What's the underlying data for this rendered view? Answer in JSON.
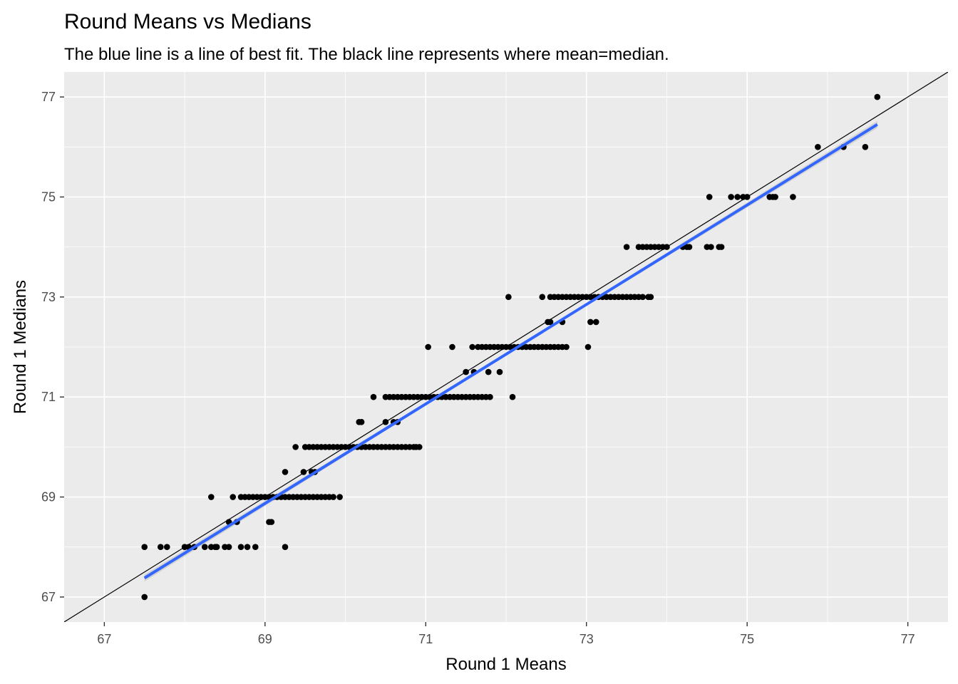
{
  "chart_data": {
    "type": "scatter",
    "title": "Round Means vs Medians",
    "subtitle": "The blue line is a line of best fit. The black line represents where mean=median.",
    "xlabel": "Round 1 Means",
    "ylabel": "Round 1 Medians",
    "xlim": [
      66.5,
      77.5
    ],
    "ylim": [
      66.5,
      77.5
    ],
    "x_ticks": [
      67,
      69,
      71,
      73,
      75,
      77
    ],
    "y_ticks": [
      67,
      69,
      71,
      73,
      75,
      77
    ],
    "grid": true,
    "colors": {
      "panel": "#ebebeb",
      "grid_major": "#ffffff",
      "points": "#000000",
      "fit_line": "#3366ff",
      "identity_line": "#000000",
      "ribbon": "#c8c8c8"
    },
    "fit_line": {
      "x": [
        67.5,
        76.62
      ],
      "y": [
        67.38,
        76.45
      ]
    },
    "identity_line": {
      "slope": 1,
      "intercept": 0
    },
    "points": [
      [
        67.5,
        67
      ],
      [
        67.5,
        68
      ],
      [
        67.7,
        68
      ],
      [
        67.78,
        68
      ],
      [
        68.0,
        68
      ],
      [
        68.05,
        68
      ],
      [
        68.12,
        68
      ],
      [
        68.25,
        68
      ],
      [
        68.33,
        68
      ],
      [
        68.38,
        68
      ],
      [
        68.4,
        68
      ],
      [
        68.5,
        68
      ],
      [
        68.55,
        68
      ],
      [
        68.7,
        68
      ],
      [
        68.78,
        68
      ],
      [
        68.88,
        68
      ],
      [
        69.25,
        68
      ],
      [
        68.55,
        68.5
      ],
      [
        68.65,
        68.5
      ],
      [
        69.05,
        68.5
      ],
      [
        69.08,
        68.5
      ],
      [
        68.33,
        69
      ],
      [
        68.6,
        69
      ],
      [
        68.7,
        69
      ],
      [
        68.75,
        69
      ],
      [
        68.8,
        69
      ],
      [
        68.85,
        69
      ],
      [
        68.9,
        69
      ],
      [
        68.95,
        69
      ],
      [
        69.0,
        69
      ],
      [
        69.05,
        69
      ],
      [
        69.1,
        69
      ],
      [
        69.15,
        69
      ],
      [
        69.2,
        69
      ],
      [
        69.25,
        69
      ],
      [
        69.3,
        69
      ],
      [
        69.35,
        69
      ],
      [
        69.4,
        69
      ],
      [
        69.45,
        69
      ],
      [
        69.5,
        69
      ],
      [
        69.55,
        69
      ],
      [
        69.6,
        69
      ],
      [
        69.65,
        69
      ],
      [
        69.7,
        69
      ],
      [
        69.75,
        69
      ],
      [
        69.8,
        69
      ],
      [
        69.85,
        69
      ],
      [
        69.93,
        69
      ],
      [
        69.25,
        69.5
      ],
      [
        69.48,
        69.5
      ],
      [
        69.58,
        69.5
      ],
      [
        69.62,
        69.5
      ],
      [
        69.38,
        70
      ],
      [
        69.5,
        70
      ],
      [
        69.55,
        70
      ],
      [
        69.6,
        70
      ],
      [
        69.65,
        70
      ],
      [
        69.7,
        70
      ],
      [
        69.75,
        70
      ],
      [
        69.8,
        70
      ],
      [
        69.85,
        70
      ],
      [
        69.9,
        70
      ],
      [
        69.95,
        70
      ],
      [
        70.0,
        70
      ],
      [
        70.05,
        70
      ],
      [
        70.1,
        70
      ],
      [
        70.15,
        70
      ],
      [
        70.2,
        70
      ],
      [
        70.25,
        70
      ],
      [
        70.3,
        70
      ],
      [
        70.35,
        70
      ],
      [
        70.4,
        70
      ],
      [
        70.45,
        70
      ],
      [
        70.5,
        70
      ],
      [
        70.55,
        70
      ],
      [
        70.6,
        70
      ],
      [
        70.65,
        70
      ],
      [
        70.7,
        70
      ],
      [
        70.75,
        70
      ],
      [
        70.8,
        70
      ],
      [
        70.85,
        70
      ],
      [
        70.88,
        70
      ],
      [
        70.92,
        70
      ],
      [
        70.17,
        70.5
      ],
      [
        70.2,
        70.5
      ],
      [
        70.5,
        70.5
      ],
      [
        70.6,
        70.5
      ],
      [
        70.65,
        70.5
      ],
      [
        70.35,
        71
      ],
      [
        70.5,
        71
      ],
      [
        70.55,
        71
      ],
      [
        70.6,
        71
      ],
      [
        70.65,
        71
      ],
      [
        70.7,
        71
      ],
      [
        70.75,
        71
      ],
      [
        70.8,
        71
      ],
      [
        70.85,
        71
      ],
      [
        70.9,
        71
      ],
      [
        70.95,
        71
      ],
      [
        71.0,
        71
      ],
      [
        71.05,
        71
      ],
      [
        71.1,
        71
      ],
      [
        71.15,
        71
      ],
      [
        71.2,
        71
      ],
      [
        71.25,
        71
      ],
      [
        71.3,
        71
      ],
      [
        71.35,
        71
      ],
      [
        71.4,
        71
      ],
      [
        71.45,
        71
      ],
      [
        71.5,
        71
      ],
      [
        71.55,
        71
      ],
      [
        71.6,
        71
      ],
      [
        71.65,
        71
      ],
      [
        71.7,
        71
      ],
      [
        71.75,
        71
      ],
      [
        71.8,
        71
      ],
      [
        72.08,
        71
      ],
      [
        71.5,
        71.5
      ],
      [
        71.6,
        71.5
      ],
      [
        71.78,
        71.5
      ],
      [
        71.92,
        71.5
      ],
      [
        71.03,
        72
      ],
      [
        71.33,
        72
      ],
      [
        71.58,
        72
      ],
      [
        71.65,
        72
      ],
      [
        71.7,
        72
      ],
      [
        71.75,
        72
      ],
      [
        71.8,
        72
      ],
      [
        71.85,
        72
      ],
      [
        71.9,
        72
      ],
      [
        71.95,
        72
      ],
      [
        72.0,
        72
      ],
      [
        72.05,
        72
      ],
      [
        72.1,
        72
      ],
      [
        72.15,
        72
      ],
      [
        72.2,
        72
      ],
      [
        72.25,
        72
      ],
      [
        72.3,
        72
      ],
      [
        72.35,
        72
      ],
      [
        72.4,
        72
      ],
      [
        72.45,
        72
      ],
      [
        72.5,
        72
      ],
      [
        72.55,
        72
      ],
      [
        72.6,
        72
      ],
      [
        72.65,
        72
      ],
      [
        72.7,
        72
      ],
      [
        72.75,
        72
      ],
      [
        73.02,
        72
      ],
      [
        72.52,
        72.5
      ],
      [
        72.55,
        72.5
      ],
      [
        72.7,
        72.5
      ],
      [
        73.05,
        72.5
      ],
      [
        73.12,
        72.5
      ],
      [
        72.03,
        73
      ],
      [
        72.45,
        73
      ],
      [
        72.55,
        73
      ],
      [
        72.6,
        73
      ],
      [
        72.65,
        73
      ],
      [
        72.7,
        73
      ],
      [
        72.75,
        73
      ],
      [
        72.8,
        73
      ],
      [
        72.85,
        73
      ],
      [
        72.9,
        73
      ],
      [
        72.95,
        73
      ],
      [
        73.0,
        73
      ],
      [
        73.05,
        73
      ],
      [
        73.1,
        73
      ],
      [
        73.15,
        73
      ],
      [
        73.2,
        73
      ],
      [
        73.25,
        73
      ],
      [
        73.3,
        73
      ],
      [
        73.35,
        73
      ],
      [
        73.4,
        73
      ],
      [
        73.45,
        73
      ],
      [
        73.5,
        73
      ],
      [
        73.55,
        73
      ],
      [
        73.6,
        73
      ],
      [
        73.65,
        73
      ],
      [
        73.7,
        73
      ],
      [
        73.77,
        73
      ],
      [
        73.8,
        73
      ],
      [
        73.5,
        74
      ],
      [
        73.65,
        74
      ],
      [
        73.7,
        74
      ],
      [
        73.75,
        74
      ],
      [
        73.8,
        74
      ],
      [
        73.85,
        74
      ],
      [
        73.9,
        74
      ],
      [
        73.95,
        74
      ],
      [
        74.0,
        74
      ],
      [
        74.2,
        74
      ],
      [
        74.25,
        74
      ],
      [
        74.28,
        74
      ],
      [
        74.5,
        74
      ],
      [
        74.55,
        74
      ],
      [
        74.65,
        74
      ],
      [
        74.68,
        74
      ],
      [
        74.53,
        75
      ],
      [
        74.8,
        75
      ],
      [
        74.88,
        75
      ],
      [
        74.95,
        75
      ],
      [
        75.0,
        75
      ],
      [
        75.28,
        75
      ],
      [
        75.32,
        75
      ],
      [
        75.35,
        75
      ],
      [
        75.57,
        75
      ],
      [
        75.88,
        76
      ],
      [
        76.2,
        76
      ],
      [
        76.47,
        76
      ],
      [
        76.62,
        77
      ]
    ]
  }
}
